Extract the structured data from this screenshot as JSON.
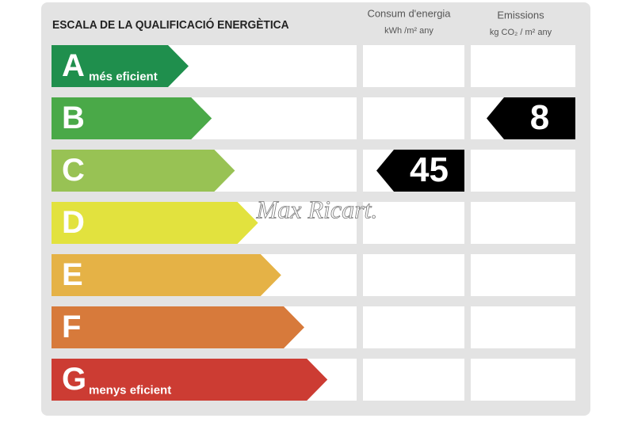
{
  "header": {
    "title": "ESCALA DE LA QUALIFICACIÓ ENERGÈTICA",
    "consumption": {
      "label": "Consum d'energia",
      "unit": "kWh /m² any"
    },
    "emissions": {
      "label": "Emissions",
      "unit": "kg CO₂ / m² any"
    }
  },
  "ratings": [
    {
      "letter": "A",
      "note": "més eficient",
      "color": "#1f8f4d"
    },
    {
      "letter": "B",
      "color": "#4aa948",
      "emissions": 8
    },
    {
      "letter": "C",
      "color": "#98c254",
      "consumption": 45
    },
    {
      "letter": "D",
      "color": "#e2e23e"
    },
    {
      "letter": "E",
      "color": "#e5b246"
    },
    {
      "letter": "F",
      "color": "#d77a3b"
    },
    {
      "letter": "G",
      "note": "menys eficient",
      "color": "#cc3c33"
    }
  ],
  "watermark": "Max Ricart."
}
